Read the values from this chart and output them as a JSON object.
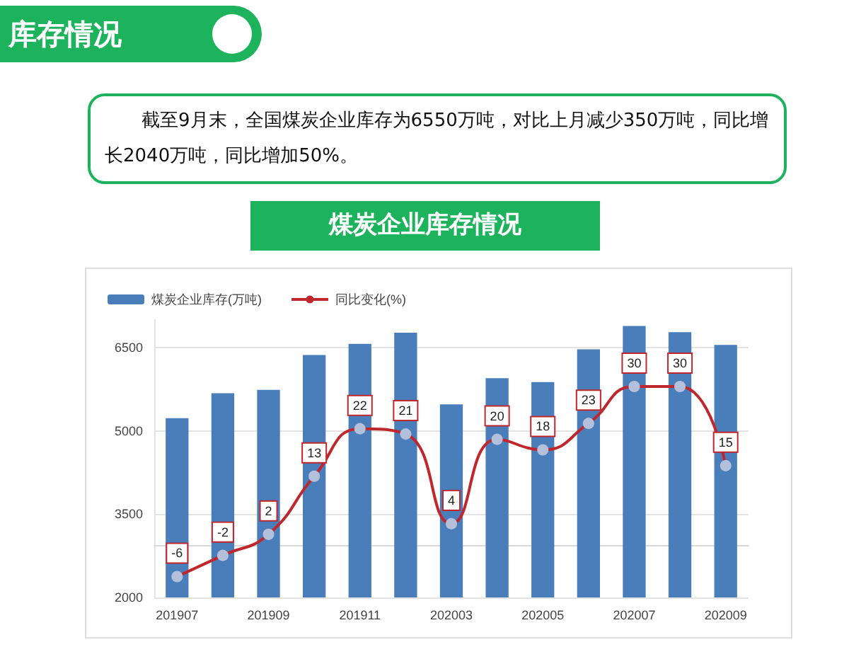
{
  "chart_data": {
    "type": "bar",
    "title": "煤炭企业库存情况",
    "annotations": [
      "库存情况",
      "截至9月末，全国煤炭企业库存为6550万吨，对比上月减少350万吨，同比增长2040万吨，同比增加50%。"
    ],
    "categories": [
      "201907",
      null,
      "201909",
      null,
      "201911",
      null,
      "202003",
      null,
      "202005",
      null,
      "202007",
      null,
      "202009"
    ],
    "series": [
      {
        "name": "煤炭企业库存(万吨)",
        "color": "#4a7ebb",
        "values": [
          5230,
          5680,
          5740,
          6370,
          6570,
          6770,
          5480,
          5950,
          5880,
          6470,
          6890,
          6780,
          6550
        ]
      },
      {
        "name": "同比变化(%)",
        "type": "line",
        "axis": "y2",
        "color": "#c0272d",
        "data_labels": true,
        "values": [
          -6,
          -2,
          2,
          13,
          22,
          21,
          4,
          20,
          18,
          23,
          30,
          30,
          15
        ]
      }
    ],
    "ylim": [
      2000,
      7000
    ],
    "yticks": [
      2000,
      3500,
      5000,
      6500
    ],
    "tick_labels": [
      "x",
      "y"
    ],
    "grid": "y",
    "legend": "top left",
    "marker": "circle"
  }
}
